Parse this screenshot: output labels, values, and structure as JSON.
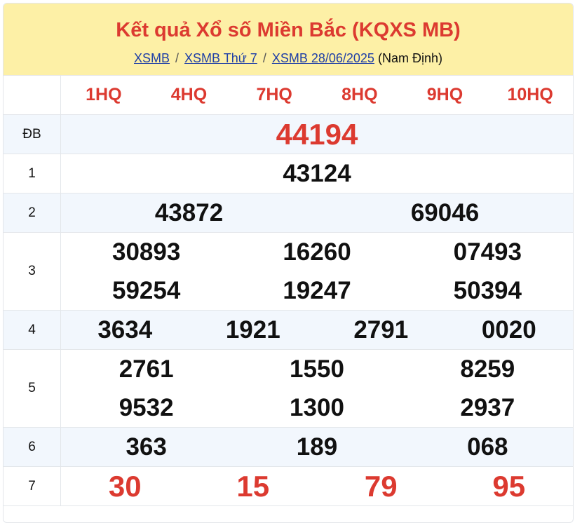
{
  "header": {
    "title": "Kết quả Xổ số Miền Bắc (KQXS MB)",
    "breadcrumb": [
      {
        "label": "XSMB"
      },
      {
        "label": "XSMB Thứ 7"
      },
      {
        "label": "XSMB 28/06/2025"
      }
    ],
    "breadcrumb_separator": "/",
    "province": "(Nam Định)"
  },
  "codes": [
    "1HQ",
    "4HQ",
    "7HQ",
    "8HQ",
    "9HQ",
    "10HQ"
  ],
  "prizes": [
    {
      "label": "ĐB",
      "cols": 1,
      "values": [
        "44194"
      ],
      "color": "red"
    },
    {
      "label": "1",
      "cols": 1,
      "values": [
        "43124"
      ]
    },
    {
      "label": "2",
      "cols": 2,
      "values": [
        "43872",
        "69046"
      ]
    },
    {
      "label": "3",
      "cols": 3,
      "values": [
        "30893",
        "16260",
        "07493",
        "59254",
        "19247",
        "50394"
      ]
    },
    {
      "label": "4",
      "cols": 4,
      "values": [
        "3634",
        "1921",
        "2791",
        "0020"
      ]
    },
    {
      "label": "5",
      "cols": 3,
      "values": [
        "2761",
        "1550",
        "8259",
        "9532",
        "1300",
        "2937"
      ]
    },
    {
      "label": "6",
      "cols": 3,
      "values": [
        "363",
        "189",
        "068"
      ]
    },
    {
      "label": "7",
      "cols": 4,
      "values": [
        "30",
        "15",
        "79",
        "95"
      ],
      "color": "red"
    }
  ],
  "colors": {
    "accent": "#dc3a30",
    "header_bg": "#fdf0a6",
    "alt_row": "#f2f7fd",
    "link": "#1f3fa6"
  }
}
